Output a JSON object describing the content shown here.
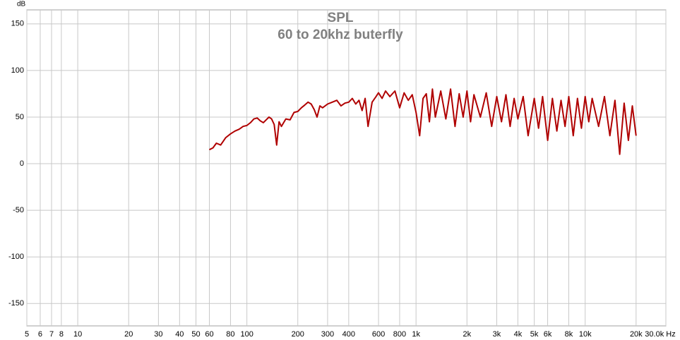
{
  "chart_data": {
    "type": "line",
    "title": "SPL",
    "subtitle": "60 to 20khz buterfly",
    "y_label": "dB",
    "xlog": true,
    "grid": true,
    "xlim": [
      5,
      30000
    ],
    "ylim": [
      -174,
      165
    ],
    "xticks": [
      5,
      6,
      7,
      8,
      10,
      20,
      30,
      40,
      50,
      60,
      80,
      100,
      200,
      300,
      400,
      600,
      800,
      {
        "value": 1000,
        "label": "1k"
      },
      {
        "value": 2000,
        "label": "2k"
      },
      {
        "value": 3000,
        "label": "3k"
      },
      {
        "value": 4000,
        "label": "4k"
      },
      {
        "value": 5000,
        "label": "5k"
      },
      {
        "value": 6000,
        "label": "6k"
      },
      {
        "value": 8000,
        "label": "8k"
      },
      {
        "value": 10000,
        "label": "10k"
      },
      {
        "value": 20000,
        "label": "20k"
      },
      {
        "value": 30000,
        "label": "30.0k Hz"
      }
    ],
    "yticks": [
      -150,
      -100,
      -50,
      0,
      50,
      100,
      150
    ],
    "series": [
      {
        "name": "SPL",
        "color": "#b00000",
        "x": [
          60,
          63,
          66,
          70,
          75,
          80,
          85,
          90,
          95,
          100,
          105,
          110,
          115,
          120,
          125,
          130,
          135,
          140,
          145,
          150,
          155,
          160,
          170,
          180,
          190,
          200,
          210,
          220,
          230,
          240,
          250,
          260,
          270,
          280,
          300,
          320,
          340,
          360,
          380,
          400,
          420,
          440,
          460,
          480,
          500,
          520,
          550,
          580,
          600,
          630,
          660,
          700,
          750,
          800,
          850,
          900,
          950,
          1000,
          1050,
          1100,
          1150,
          1200,
          1250,
          1300,
          1400,
          1500,
          1600,
          1700,
          1800,
          1900,
          2000,
          2100,
          2200,
          2400,
          2600,
          2800,
          3000,
          3200,
          3400,
          3600,
          3800,
          4000,
          4300,
          4600,
          5000,
          5300,
          5600,
          6000,
          6400,
          6800,
          7200,
          7600,
          8000,
          8500,
          9000,
          9500,
          10000,
          10500,
          11000,
          12000,
          13000,
          14000,
          15000,
          16000,
          17000,
          18000,
          19000,
          20000
        ],
        "values": [
          15,
          17,
          22,
          20,
          28,
          32,
          35,
          37,
          40,
          41,
          44,
          48,
          49,
          46,
          44,
          47,
          50,
          48,
          42,
          20,
          45,
          40,
          48,
          47,
          55,
          56,
          60,
          63,
          66,
          64,
          58,
          50,
          62,
          60,
          64,
          66,
          68,
          62,
          65,
          66,
          70,
          64,
          68,
          57,
          70,
          40,
          66,
          72,
          76,
          70,
          78,
          72,
          78,
          60,
          76,
          68,
          74,
          55,
          30,
          70,
          75,
          45,
          80,
          50,
          78,
          48,
          80,
          40,
          75,
          50,
          78,
          45,
          74,
          50,
          76,
          40,
          72,
          45,
          74,
          40,
          70,
          48,
          72,
          30,
          70,
          38,
          72,
          25,
          70,
          35,
          68,
          40,
          72,
          30,
          70,
          38,
          72,
          45,
          70,
          40,
          72,
          30,
          68,
          10,
          65,
          25,
          62,
          30
        ]
      }
    ]
  }
}
